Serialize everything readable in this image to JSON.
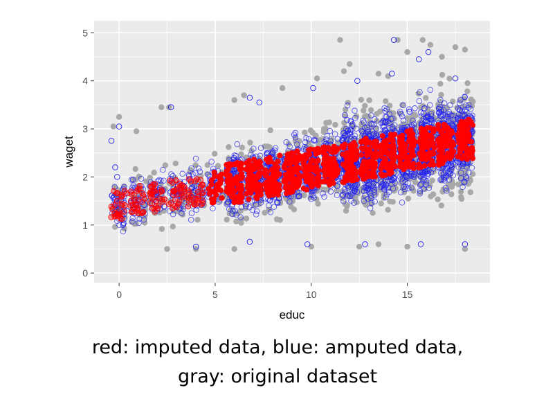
{
  "chart_data": {
    "type": "scatter",
    "xlabel": "educ",
    "ylabel": "waget",
    "xlim": [
      -1.3,
      19.3
    ],
    "ylim": [
      -0.2,
      5.25
    ],
    "x_ticks": [
      0,
      5,
      10,
      15
    ],
    "y_ticks": [
      0,
      1,
      2,
      3,
      4,
      5
    ],
    "grid": true,
    "background": "#ebebeb",
    "series": [
      {
        "description": "gray: original dataset",
        "color": "#a8a8a8",
        "marker": "filled-circle",
        "points": [
          [
            11.5,
            4.85
          ],
          [
            14.5,
            4.85
          ],
          [
            15.8,
            4.85
          ],
          [
            16.2,
            4.75
          ],
          [
            17.5,
            4.7
          ],
          [
            18,
            4.65
          ],
          [
            15,
            4.6
          ],
          [
            16.8,
            4.5
          ],
          [
            12,
            4.35
          ],
          [
            14,
            4.1
          ],
          [
            13.5,
            4.15
          ],
          [
            11.7,
            4.2
          ],
          [
            10.3,
            4.05
          ],
          [
            8.5,
            3.85
          ],
          [
            6,
            3.6
          ],
          [
            6.5,
            3.7
          ],
          [
            2.2,
            3.45
          ],
          [
            2.6,
            3.45
          ],
          [
            0,
            3.25
          ],
          [
            -0.3,
            3.05
          ],
          [
            0.9,
            2.95
          ],
          [
            12.5,
            0.55
          ],
          [
            13.5,
            0.6
          ],
          [
            15,
            0.55
          ],
          [
            18,
            0.5
          ],
          [
            2.5,
            0.5
          ],
          [
            4,
            0.5
          ],
          [
            6,
            0.5
          ],
          [
            10,
            0.55
          ]
        ]
      },
      {
        "description": "blue: amputed data",
        "color": "#1f1ff0",
        "marker": "open-circle",
        "points": [
          [
            14.3,
            4.85
          ],
          [
            15.6,
            4.45
          ],
          [
            16.1,
            4.6
          ],
          [
            12.4,
            4.0
          ],
          [
            14.2,
            4.15
          ],
          [
            17.5,
            4.05
          ],
          [
            10.1,
            3.85
          ],
          [
            6.8,
            3.65
          ],
          [
            7.3,
            3.55
          ],
          [
            2.7,
            3.45
          ],
          [
            0,
            3.05
          ],
          [
            -0.4,
            2.75
          ],
          [
            -0.2,
            2.2
          ],
          [
            -0.1,
            2.0
          ],
          [
            0.2,
            1.0
          ],
          [
            0.4,
            1.3
          ],
          [
            4,
            0.55
          ],
          [
            6.8,
            0.65
          ],
          [
            9.8,
            0.6
          ],
          [
            12.8,
            0.6
          ],
          [
            15.7,
            0.6
          ],
          [
            18,
            0.6
          ]
        ]
      },
      {
        "description": "red: imputed data",
        "color": "#ff0000",
        "marker": "filled-circle",
        "trend": {
          "intercept": 1.42,
          "slope": 0.075
        }
      }
    ]
  },
  "captions": {
    "line1": "red: imputed data, blue: amputed data,",
    "line2": "gray: original dataset"
  }
}
